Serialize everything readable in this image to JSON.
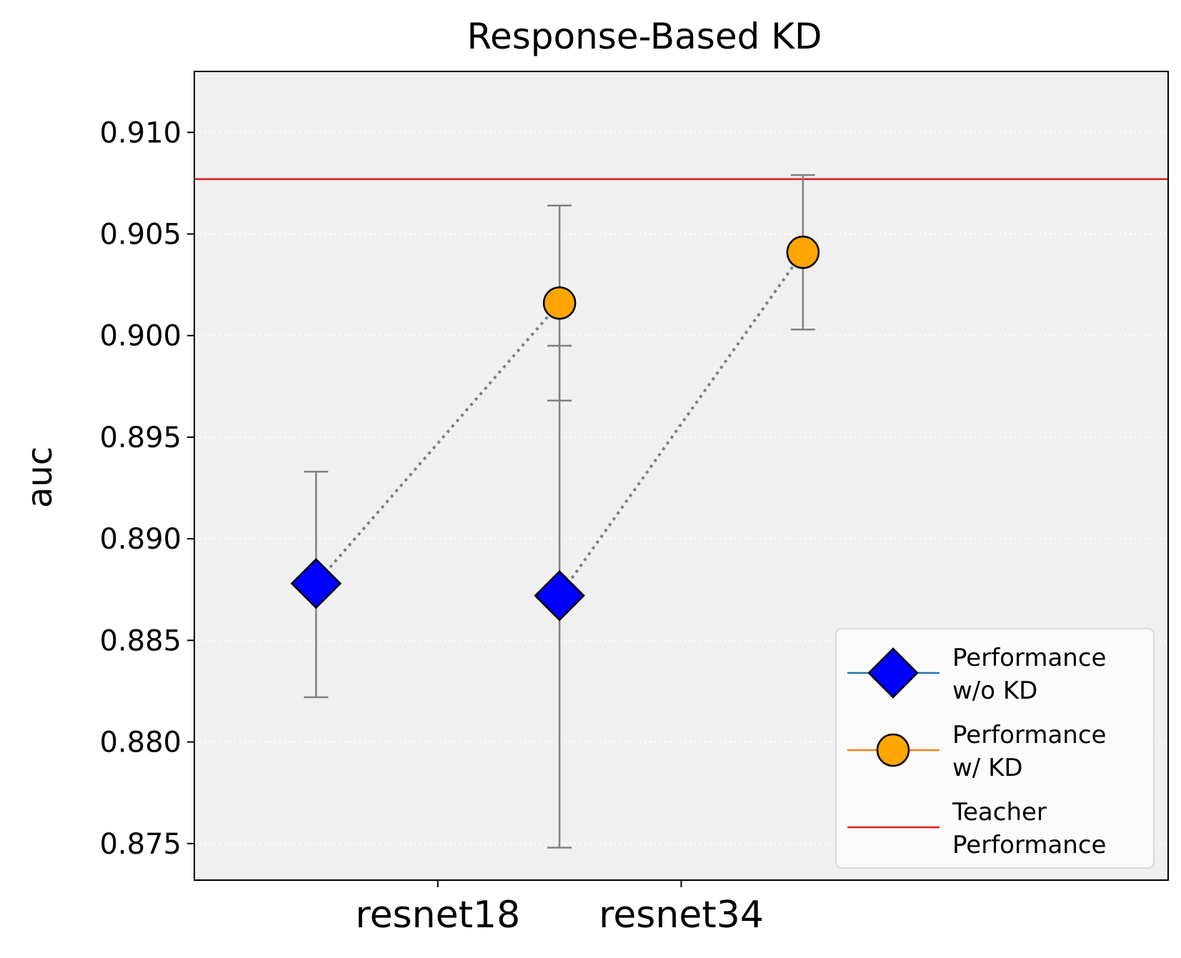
{
  "chart_data": {
    "type": "scatter",
    "title": "Response-Based KD",
    "xlabel": "",
    "ylabel": "auc",
    "categories": [
      "resnet18",
      "resnet34"
    ],
    "ylim": [
      0.8732,
      0.913
    ],
    "yticks": [
      "0.875",
      "0.880",
      "0.885",
      "0.890",
      "0.895",
      "0.900",
      "0.905",
      "0.910"
    ],
    "grid": "horizontal dotted",
    "legend_position": "lower-right",
    "series": [
      {
        "name": "Performance w/o KD",
        "legend_lines": [
          "Performance",
          "w/o KD"
        ],
        "marker": "diamond",
        "color": "#0000ff",
        "line_color": "#1f77b4",
        "offset": -0.5,
        "values": [
          0.8878,
          0.8872
        ],
        "err_low": [
          0.8822,
          0.8748
        ],
        "err_high": [
          0.8933,
          0.8995
        ]
      },
      {
        "name": "Performance w/ KD",
        "legend_lines": [
          "Performance",
          "w/ KD"
        ],
        "marker": "circle",
        "color": "#ffa500",
        "line_color": "#ff7f0e",
        "offset": 0.5,
        "values": [
          0.9016,
          0.9041
        ],
        "err_low": [
          0.8968,
          0.9003
        ],
        "err_high": [
          0.9064,
          0.9079
        ]
      }
    ],
    "reference_line": {
      "name": "Teacher Performance",
      "legend_lines": [
        "Teacher",
        "Performance"
      ],
      "value": 0.9077,
      "color": "#e41a1c"
    },
    "colors": {
      "plot_background": "#f0f0f0",
      "errorbar": "#808080",
      "connector": "#808080",
      "grid": "#ffffff"
    }
  }
}
